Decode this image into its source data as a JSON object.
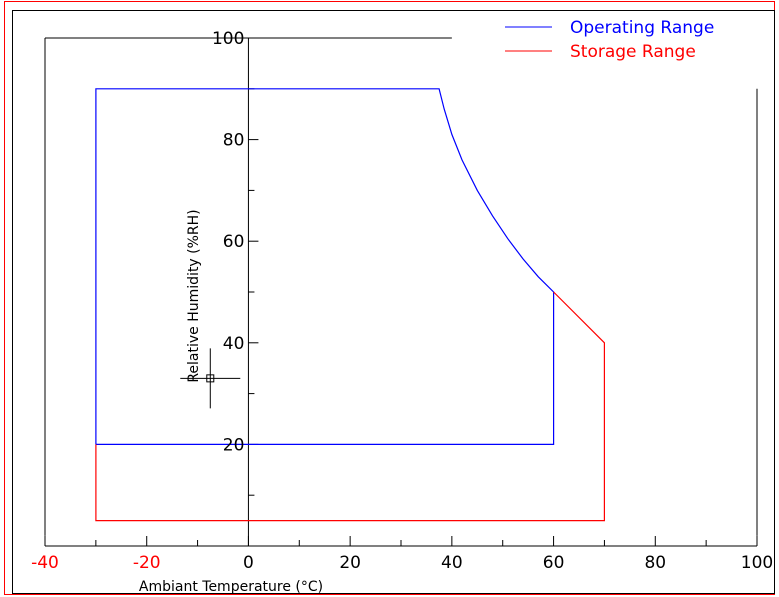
{
  "chart_data": {
    "type": "line",
    "xlabel": "Ambiant Temperature (°C)",
    "ylabel": "Relative Humidity (%RH)",
    "xlim": [
      -40,
      100
    ],
    "ylim": [
      0,
      100
    ],
    "x_ticks": [
      "-40",
      "-20",
      "0",
      "20",
      "40",
      "60",
      "80",
      "100"
    ],
    "y_ticks": [
      "20",
      "40",
      "60",
      "80",
      "100"
    ],
    "negative_tick_color": "#ff0000",
    "grid": false,
    "legend_position": "top-right",
    "series": [
      {
        "name": "Operating Range",
        "color": "#0000ff",
        "points": [
          [
            -30,
            20
          ],
          [
            -30,
            90
          ],
          [
            37.5,
            90
          ],
          [
            38.5,
            86
          ],
          [
            40,
            81
          ],
          [
            42,
            76
          ],
          [
            45,
            70
          ],
          [
            48,
            65
          ],
          [
            51,
            60.5
          ],
          [
            54,
            56.5
          ],
          [
            57,
            53
          ],
          [
            60,
            50
          ],
          [
            60,
            20
          ],
          [
            -30,
            20
          ]
        ]
      },
      {
        "name": "Storage Range",
        "color": "#ff0000",
        "points": [
          [
            -30,
            20
          ],
          [
            -30,
            5
          ],
          [
            70,
            5
          ],
          [
            70,
            40
          ],
          [
            60,
            50
          ]
        ]
      }
    ],
    "outline": {
      "color": "#000000",
      "segments": [
        [
          [
            -40,
            100
          ],
          [
            40,
            100
          ]
        ],
        [
          [
            -40,
            100
          ],
          [
            -40,
            2
          ]
        ],
        [
          [
            100,
            90
          ],
          [
            100,
            2
          ]
        ]
      ]
    },
    "cursor": {
      "x": -7.5,
      "y": 33
    }
  }
}
